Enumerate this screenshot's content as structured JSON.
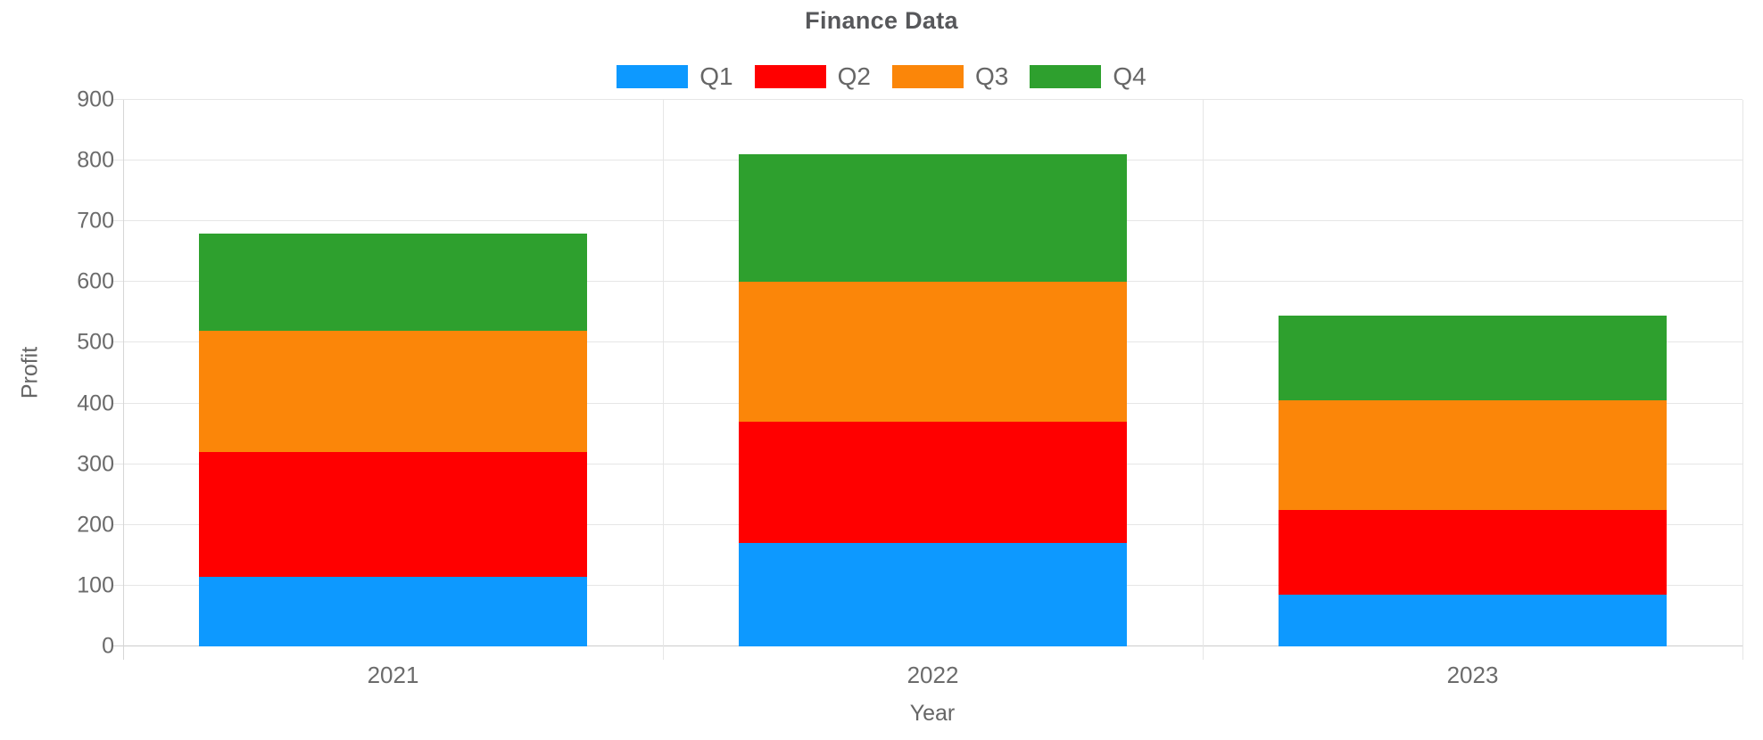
{
  "chart_data": {
    "type": "bar",
    "stacked": true,
    "title": "Finance Data",
    "xlabel": "Year",
    "ylabel": "Profit",
    "categories": [
      "2021",
      "2022",
      "2023"
    ],
    "series": [
      {
        "name": "Q1",
        "color": "#0D99FF",
        "values": [
          115,
          170,
          85
        ]
      },
      {
        "name": "Q2",
        "color": "#FF0000",
        "values": [
          205,
          200,
          140
        ]
      },
      {
        "name": "Q3",
        "color": "#FB8609",
        "values": [
          200,
          230,
          180
        ]
      },
      {
        "name": "Q4",
        "color": "#2EA02E",
        "values": [
          160,
          210,
          140
        ]
      }
    ],
    "stack_totals": [
      680,
      810,
      545
    ],
    "ylim": [
      0,
      900
    ],
    "yticks": [
      0,
      100,
      200,
      300,
      400,
      500,
      600,
      700,
      800,
      900
    ],
    "grid": true,
    "legend_position": "top",
    "colors": {
      "grid": "#E6E6E6",
      "axis": "#D6D6D6",
      "baseline": "#CCCCCC",
      "tick_text": "#6B6B6B",
      "title_text": "#57585B"
    }
  }
}
